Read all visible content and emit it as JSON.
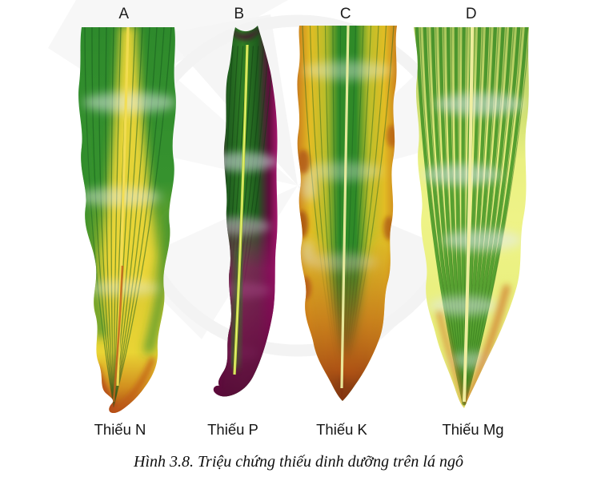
{
  "figure": {
    "caption": "Hình 3.8. Triệu chứng thiếu dinh dưỡng trên lá ngô",
    "panels": [
      {
        "letter": "A",
        "label": "Thiếu N",
        "nutrient": "N",
        "colors": [
          "#2e8a2c",
          "#e9d434",
          "#aa4114"
        ]
      },
      {
        "letter": "B",
        "label": "Thiếu P",
        "nutrient": "P",
        "colors": [
          "#2e7d25",
          "#a8156e",
          "#c8de3e"
        ]
      },
      {
        "letter": "C",
        "label": "Thiếu K",
        "nutrient": "K",
        "colors": [
          "#2f8a28",
          "#e2bd24",
          "#ad5316"
        ]
      },
      {
        "letter": "D",
        "label": "Thiếu Mg",
        "nutrient": "Mg",
        "colors": [
          "#4f9c2c",
          "#eef387",
          "#cf7526"
        ]
      }
    ],
    "watermark_color": "#f0f0f0",
    "text_color": "#1c1c1c"
  }
}
